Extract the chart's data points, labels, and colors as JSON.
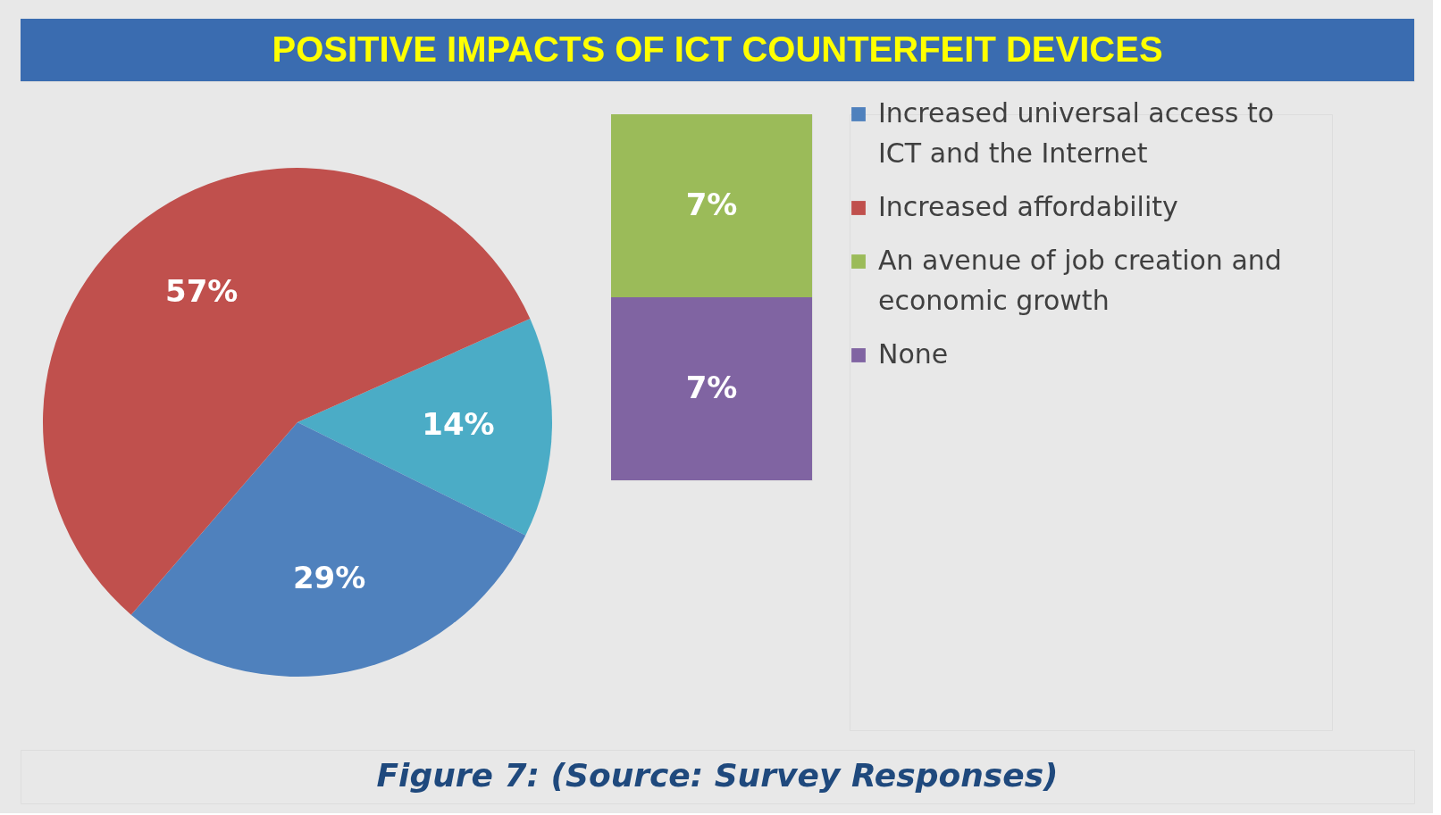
{
  "chart_data": [
    {
      "type": "pie",
      "title": "POSITIVE IMPACTS OF ICT COUNTERFEIT DEVICES",
      "categories": [
        null,
        "Increased universal access to ICT and the Internet",
        "Increased affordability"
      ],
      "values": [
        14,
        29,
        57
      ],
      "colors": [
        "#4bacc6",
        "#4f81bd",
        "#c0504d"
      ],
      "value_labels": [
        "14%",
        "29%",
        "57%"
      ],
      "legend": "right",
      "annotations": [
        "Figure 7: (Source: Survey Responses)"
      ]
    },
    {
      "type": "bar",
      "stacked": true,
      "categories": [
        null
      ],
      "legend": "right",
      "series": [
        {
          "name": "None",
          "color": "#8064a2",
          "values": [
            7
          ],
          "value_labels": [
            "7%"
          ]
        },
        {
          "name": "An avenue of job creation and economic growth",
          "color": "#9bbb59",
          "values": [
            7
          ],
          "value_labels": [
            "7%"
          ]
        }
      ]
    }
  ]
}
